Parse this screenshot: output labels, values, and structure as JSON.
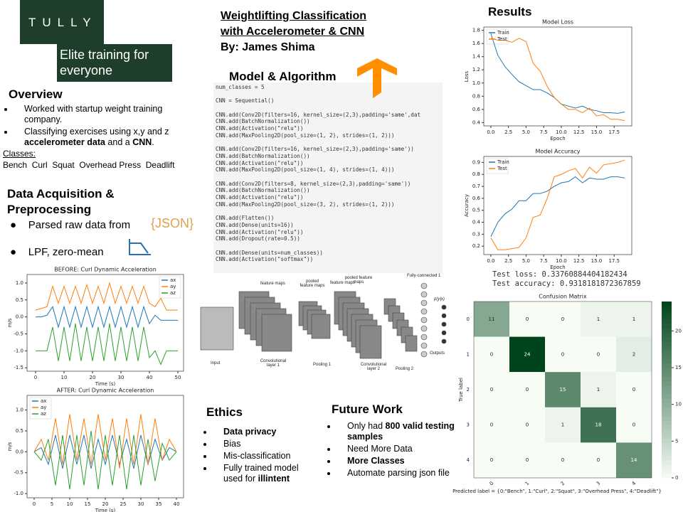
{
  "logo": {
    "brand": "TULLY",
    "tagline": "Elite training for everyone"
  },
  "header": {
    "title_lines": [
      "Weightlifting Classification",
      "with Accelerometer & CNN"
    ],
    "author": "By: James Shima"
  },
  "overview": {
    "heading": "Overview",
    "bullets": [
      [
        {
          "text": "Worked with startup weight training company."
        }
      ],
      [
        {
          "text": "Classifying exercises using x,y and z "
        },
        {
          "text": "accelerometer data",
          "bold": true
        },
        {
          "text": " and a "
        },
        {
          "text": "CNN",
          "bold": true
        },
        {
          "text": "."
        }
      ]
    ],
    "classes_label": "Classes:",
    "classes": "Bench  Curl  Squat  Overhead Press  Deadlift"
  },
  "data_acquisition": {
    "heading": "Data Acquisition & Preprocessing",
    "bullets": [
      "Parsed raw data from",
      "LPF, zero-mean"
    ],
    "json_icon": "{JSON}"
  },
  "model": {
    "heading": "Model & Algorithm",
    "code": [
      [
        "num_classes = 5"
      ],
      [
        "CNN = Sequential()"
      ],
      [
        "CNN.add(Conv2D(filters=16, kernel_size=(2,3),padding='same',dat",
        "CNN.add(BatchNormalization())",
        "CNN.add(Activation(\"relu\"))",
        "CNN.add(MaxPooling2D(pool_size=(1, 2), strides=(1, 2)))"
      ],
      [
        "CNN.add(Conv2D(filters=16, kernel_size=(2,3),padding='same'))",
        "CNN.add(BatchNormalization())",
        "CNN.add(Activation(\"relu\"))",
        "CNN.add(MaxPooling2D(pool_size=(1, 4), strides=(1, 4)))"
      ],
      [
        "CNN.add(Conv2D(filters=8, kernel_size=(2,3),padding='same'))",
        "CNN.add(BatchNormalization())",
        "CNN.add(Activation(\"relu\"))",
        "CNN.add(MaxPooling2D(pool_size=(3, 2), strides=(1, 2)))"
      ],
      [
        "CNN.add(Flatten())",
        "CNN.add(Dense(units=16))",
        "CNN.add(Activation(\"relu\"))",
        "CNN.add(Dropout(rate=0.5))"
      ],
      [
        "CNN.add(Dense(units=num_classes))",
        "CNN.add(Activation(\"softmax\"))"
      ]
    ],
    "diagram": {
      "feature_maps_1": "feature maps",
      "pooled_1": "pooled feature maps",
      "feature_maps_2": "feature maps",
      "pooled_2": "pooled feature maps",
      "fc": "Fully-connected 1",
      "prob": "p(y|x)",
      "input": "Input",
      "conv1": "Convolutional layer 1",
      "pool1": "Pooling 1",
      "conv2": "Convolutional layer 2",
      "pool2": "Pooling 2",
      "outputs": "Outputs"
    }
  },
  "results": {
    "heading": "Results",
    "test_loss": "Test loss: 0.33760884404182434",
    "test_accuracy": "Test accuracy: 0.9318181872367859"
  },
  "ethics": {
    "heading": "Ethics",
    "bullets": [
      [
        {
          "text": "Data privacy",
          "bold": true
        }
      ],
      [
        {
          "text": "Bias"
        }
      ],
      [
        {
          "text": "Mis-classification"
        }
      ],
      [
        {
          "text": "Fully trained model used for "
        },
        {
          "text": "illintent",
          "bold": true
        }
      ]
    ]
  },
  "future_work": {
    "heading": "Future Work",
    "bullets": [
      [
        {
          "text": "Only had "
        },
        {
          "text": "800 valid testing samples",
          "bold": true
        }
      ],
      [
        {
          "text": "Need More Data"
        }
      ],
      [
        {
          "text": "More Classes",
          "bold": true
        }
      ],
      [
        {
          "text": "Automate parsing json file"
        }
      ]
    ]
  },
  "chart_data": [
    {
      "type": "line",
      "title": "BEFORE: Curl Dynamic Acceleration",
      "x_label": "Time (s)",
      "y_label": "m/s",
      "legend": "upper right",
      "x": [
        0,
        2,
        4,
        6,
        8,
        10,
        12,
        14,
        16,
        18,
        20,
        22,
        24,
        26,
        28,
        30,
        32,
        34,
        36,
        38,
        40,
        42,
        44,
        46,
        48,
        50
      ],
      "xlim": [
        -3,
        52
      ],
      "xticks": [
        0,
        10,
        20,
        30,
        40,
        50
      ],
      "ylim": [
        -1.6,
        1.25
      ],
      "yticks": [
        -1.5,
        {
          "value": -1,
          "label": "-1.0"
        },
        -0.5,
        {
          "value": 0,
          "label": "0.0"
        },
        0.5,
        {
          "value": 1,
          "label": "1.0"
        }
      ],
      "series": [
        {
          "name": "ax",
          "color": "#1f77b4",
          "values": [
            0,
            0,
            0.05,
            0.3,
            -0.3,
            0.3,
            -0.3,
            0.3,
            -0.3,
            0.3,
            -0.3,
            0.3,
            -0.3,
            0.3,
            -0.3,
            0.3,
            -0.3,
            0.3,
            -0.3,
            0.3,
            -0.2,
            0.05,
            -0.1,
            -0.1,
            -0.1,
            -0.1
          ]
        },
        {
          "name": "ay",
          "color": "#ff7f0e",
          "values": [
            0.2,
            0.25,
            0.3,
            0.9,
            0.4,
            0.9,
            0.4,
            0.9,
            0.4,
            0.95,
            0.4,
            0.9,
            0.4,
            1.0,
            0.4,
            0.9,
            0.4,
            0.9,
            0.4,
            0.9,
            0.4,
            0.3,
            0.55,
            0.2,
            0.2,
            0.2
          ]
        },
        {
          "name": "az",
          "color": "#2ca02c",
          "values": [
            -1.0,
            -1.0,
            -1.0,
            -0.3,
            -1.3,
            -0.3,
            -1.3,
            -0.2,
            -1.3,
            -0.3,
            -1.3,
            -0.3,
            -1.3,
            -0.2,
            -1.3,
            -0.3,
            -1.3,
            -0.3,
            -1.3,
            -0.3,
            -1.2,
            -1.0,
            -1.4,
            -1.0,
            -1.0,
            -1.0
          ]
        }
      ]
    },
    {
      "type": "line",
      "title": "AFTER: Curl Dynamic Acceleration",
      "x_label": "Time (s)",
      "y_label": "m/s",
      "legend": "upper left",
      "x": [
        0,
        2,
        4,
        6,
        8,
        10,
        12,
        14,
        16,
        18,
        20,
        22,
        24,
        26,
        28,
        30,
        32,
        34,
        36,
        38,
        40
      ],
      "xlim": [
        -2,
        42
      ],
      "xticks": [
        0,
        5,
        10,
        15,
        20,
        25,
        30,
        35,
        40
      ],
      "ylim": [
        -1.1,
        1.35
      ],
      "yticks": [
        {
          "value": -1,
          "label": "-1.0"
        },
        -0.5,
        {
          "value": 0,
          "label": "0.0"
        },
        0.5,
        {
          "value": 1,
          "label": "1.0"
        }
      ],
      "series": [
        {
          "name": "ax",
          "color": "#1f77b4",
          "values": [
            0,
            0.1,
            -0.3,
            0.4,
            -0.4,
            0.4,
            -0.3,
            0.4,
            -0.4,
            0.3,
            -0.3,
            0.4,
            -0.3,
            0.3,
            -0.4,
            0.4,
            -0.3,
            0.3,
            -0.2,
            0.1,
            0
          ]
        },
        {
          "name": "ay",
          "color": "#ff7f0e",
          "values": [
            0,
            0.3,
            -0.2,
            0.8,
            -0.3,
            0.9,
            -0.2,
            0.8,
            -0.3,
            0.9,
            -0.2,
            0.8,
            -0.4,
            0.8,
            -0.3,
            0.9,
            -0.3,
            0.8,
            -0.2,
            0.3,
            0
          ]
        },
        {
          "name": "az",
          "color": "#2ca02c",
          "values": [
            0,
            -0.2,
            0.3,
            -0.8,
            0.4,
            -0.9,
            0.4,
            -0.8,
            0.5,
            -0.9,
            0.4,
            -0.8,
            0.4,
            -0.9,
            0.4,
            -0.8,
            0.3,
            -0.7,
            0.2,
            -0.2,
            0
          ]
        }
      ]
    },
    {
      "type": "line",
      "title": "Model Loss",
      "x_label": "Epoch",
      "y_label": "Loss",
      "legend": "upper left",
      "x": [
        0,
        1,
        2,
        3,
        4,
        5,
        6,
        7,
        8,
        9,
        10,
        11,
        12,
        13,
        14,
        15,
        16,
        17,
        18,
        19
      ],
      "xlim": [
        -1,
        20
      ],
      "xticks": [
        {
          "value": 0,
          "label": "0.0"
        },
        2.5,
        {
          "value": 5,
          "label": "5.0"
        },
        7.5,
        {
          "value": 10,
          "label": "10.0"
        },
        12.5,
        {
          "value": 15,
          "label": "15.0"
        },
        17.5
      ],
      "ylim": [
        0.35,
        1.85
      ],
      "yticks": [
        0.4,
        0.6,
        0.8,
        {
          "value": 1,
          "label": "1.0"
        },
        1.2,
        1.4,
        1.6,
        1.8
      ],
      "series": [
        {
          "name": "Train",
          "color": "#1f77b4",
          "values": [
            1.75,
            1.42,
            1.25,
            1.13,
            1.02,
            0.96,
            0.9,
            0.9,
            0.85,
            0.78,
            0.68,
            0.65,
            0.62,
            0.65,
            0.6,
            0.58,
            0.55,
            0.55,
            0.54,
            0.56
          ]
        },
        {
          "name": "Test",
          "color": "#ff7f0e",
          "values": [
            1.68,
            1.65,
            1.65,
            1.62,
            1.68,
            1.63,
            1.3,
            1.18,
            0.95,
            0.78,
            0.68,
            0.6,
            0.6,
            0.55,
            0.62,
            0.5,
            0.52,
            0.45,
            0.45,
            0.43
          ]
        }
      ]
    },
    {
      "type": "line",
      "title": "Model Accuracy",
      "x_label": "Epoch",
      "y_label": "Accuracy",
      "legend": "upper left",
      "x": [
        0,
        1,
        2,
        3,
        4,
        5,
        6,
        7,
        8,
        9,
        10,
        11,
        12,
        13,
        14,
        15,
        16,
        17,
        18,
        19
      ],
      "xlim": [
        -1,
        20
      ],
      "xticks": [
        {
          "value": 0,
          "label": "0.0"
        },
        2.5,
        {
          "value": 5,
          "label": "5.0"
        },
        7.5,
        {
          "value": 10,
          "label": "10.0"
        },
        12.5,
        {
          "value": 15,
          "label": "15.0"
        },
        17.5
      ],
      "ylim": [
        0.13,
        0.95
      ],
      "yticks": [
        0.2,
        0.3,
        0.4,
        0.5,
        0.6,
        0.7,
        0.8,
        0.9
      ],
      "series": [
        {
          "name": "Train",
          "color": "#1f77b4",
          "values": [
            0.28,
            0.4,
            0.47,
            0.51,
            0.58,
            0.58,
            0.64,
            0.64,
            0.66,
            0.7,
            0.73,
            0.74,
            0.78,
            0.73,
            0.77,
            0.76,
            0.76,
            0.78,
            0.78,
            0.77
          ]
        },
        {
          "name": "Test",
          "color": "#ff7f0e",
          "values": [
            0.27,
            0.17,
            0.17,
            0.18,
            0.19,
            0.27,
            0.44,
            0.46,
            0.6,
            0.78,
            0.8,
            0.83,
            0.85,
            0.77,
            0.86,
            0.81,
            0.88,
            0.89,
            0.9,
            0.92
          ]
        }
      ]
    },
    {
      "type": "heatmap",
      "title": "Confusion Matrix",
      "x_label": "Predicted label = {0:\"Bench\", 1:\"Curl\", 2:\"Squat\", 3:\"Overhead Press\", 4:\"Deadlift\"}",
      "y_label": "True label",
      "categories": [
        "0",
        "1",
        "2",
        "3",
        "4"
      ],
      "values": [
        [
          11,
          0,
          0,
          1,
          1
        ],
        [
          0,
          24,
          0,
          0,
          2
        ],
        [
          0,
          0,
          15,
          1,
          0
        ],
        [
          0,
          0,
          1,
          18,
          0
        ],
        [
          0,
          0,
          0,
          0,
          14
        ]
      ],
      "color": "#00441b",
      "clim": [
        0,
        24
      ],
      "cticks": [
        0,
        5,
        10,
        15,
        20
      ]
    }
  ]
}
